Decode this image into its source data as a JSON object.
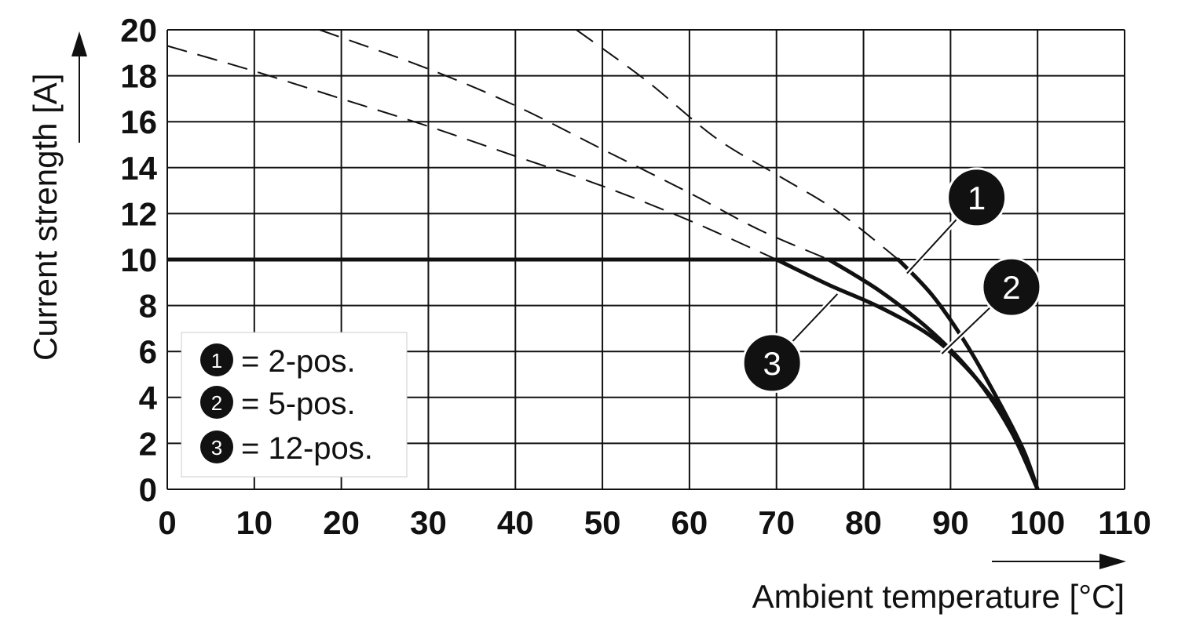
{
  "chart_data": {
    "type": "line",
    "title": "",
    "xlabel": "Ambient temperature [°C]",
    "ylabel": "Current strength [A]",
    "xlim": [
      0,
      110
    ],
    "ylim": [
      0,
      20
    ],
    "x_ticks": [
      "0",
      "10",
      "20",
      "30",
      "40",
      "50",
      "60",
      "70",
      "80",
      "90",
      "100",
      "110"
    ],
    "y_ticks": [
      "0",
      "2",
      "4",
      "6",
      "8",
      "10",
      "12",
      "14",
      "16",
      "18",
      "20"
    ],
    "grid": true,
    "legend_position": "bottom-left",
    "series": [
      {
        "name": "2-pos.",
        "marker": "1",
        "solid": [
          [
            0,
            10
          ],
          [
            84,
            10
          ],
          [
            88,
            8.4
          ],
          [
            92,
            6.2
          ],
          [
            96,
            3.5
          ],
          [
            98.5,
            1.6
          ],
          [
            100,
            0
          ]
        ],
        "dashed": [
          [
            47,
            20
          ],
          [
            55,
            17.8
          ],
          [
            63,
            15.3
          ],
          [
            70,
            13.7
          ],
          [
            77,
            12.1
          ],
          [
            84,
            10
          ]
        ]
      },
      {
        "name": "5-pos.",
        "marker": "2",
        "solid": [
          [
            0,
            10
          ],
          [
            76,
            10
          ],
          [
            82,
            8.6
          ],
          [
            88,
            6.8
          ],
          [
            93,
            4.8
          ],
          [
            97,
            2.5
          ],
          [
            100,
            0
          ]
        ],
        "dashed": [
          [
            17.5,
            20
          ],
          [
            30,
            18.3
          ],
          [
            40,
            16.7
          ],
          [
            50,
            14.8
          ],
          [
            60,
            12.9
          ],
          [
            68,
            11.3
          ],
          [
            76,
            10
          ]
        ]
      },
      {
        "name": "12-pos.",
        "marker": "3",
        "solid": [
          [
            0,
            10
          ],
          [
            70,
            10
          ],
          [
            76,
            8.9
          ],
          [
            82,
            7.9
          ],
          [
            88,
            6.6
          ],
          [
            93,
            4.8
          ],
          [
            97,
            2.7
          ],
          [
            100,
            0
          ]
        ],
        "dashed": [
          [
            0,
            19.3
          ],
          [
            10,
            18.2
          ],
          [
            20,
            17.0
          ],
          [
            30,
            15.8
          ],
          [
            40,
            14.5
          ],
          [
            50,
            13.2
          ],
          [
            60,
            11.7
          ],
          [
            70,
            10
          ]
        ]
      }
    ],
    "legend": [
      {
        "marker": "1",
        "label": "= 2-pos."
      },
      {
        "marker": "2",
        "label": "= 5-pos."
      },
      {
        "marker": "3",
        "label": "= 12-pos."
      }
    ],
    "callouts": [
      {
        "marker": "1",
        "at": [
          85,
          9.4
        ],
        "to": [
          93,
          12.7
        ]
      },
      {
        "marker": "2",
        "at": [
          89,
          5.9
        ],
        "to": [
          97,
          8.8
        ]
      },
      {
        "marker": "3",
        "at": [
          77,
          8.5
        ],
        "to": [
          69.5,
          5.5
        ]
      }
    ]
  }
}
